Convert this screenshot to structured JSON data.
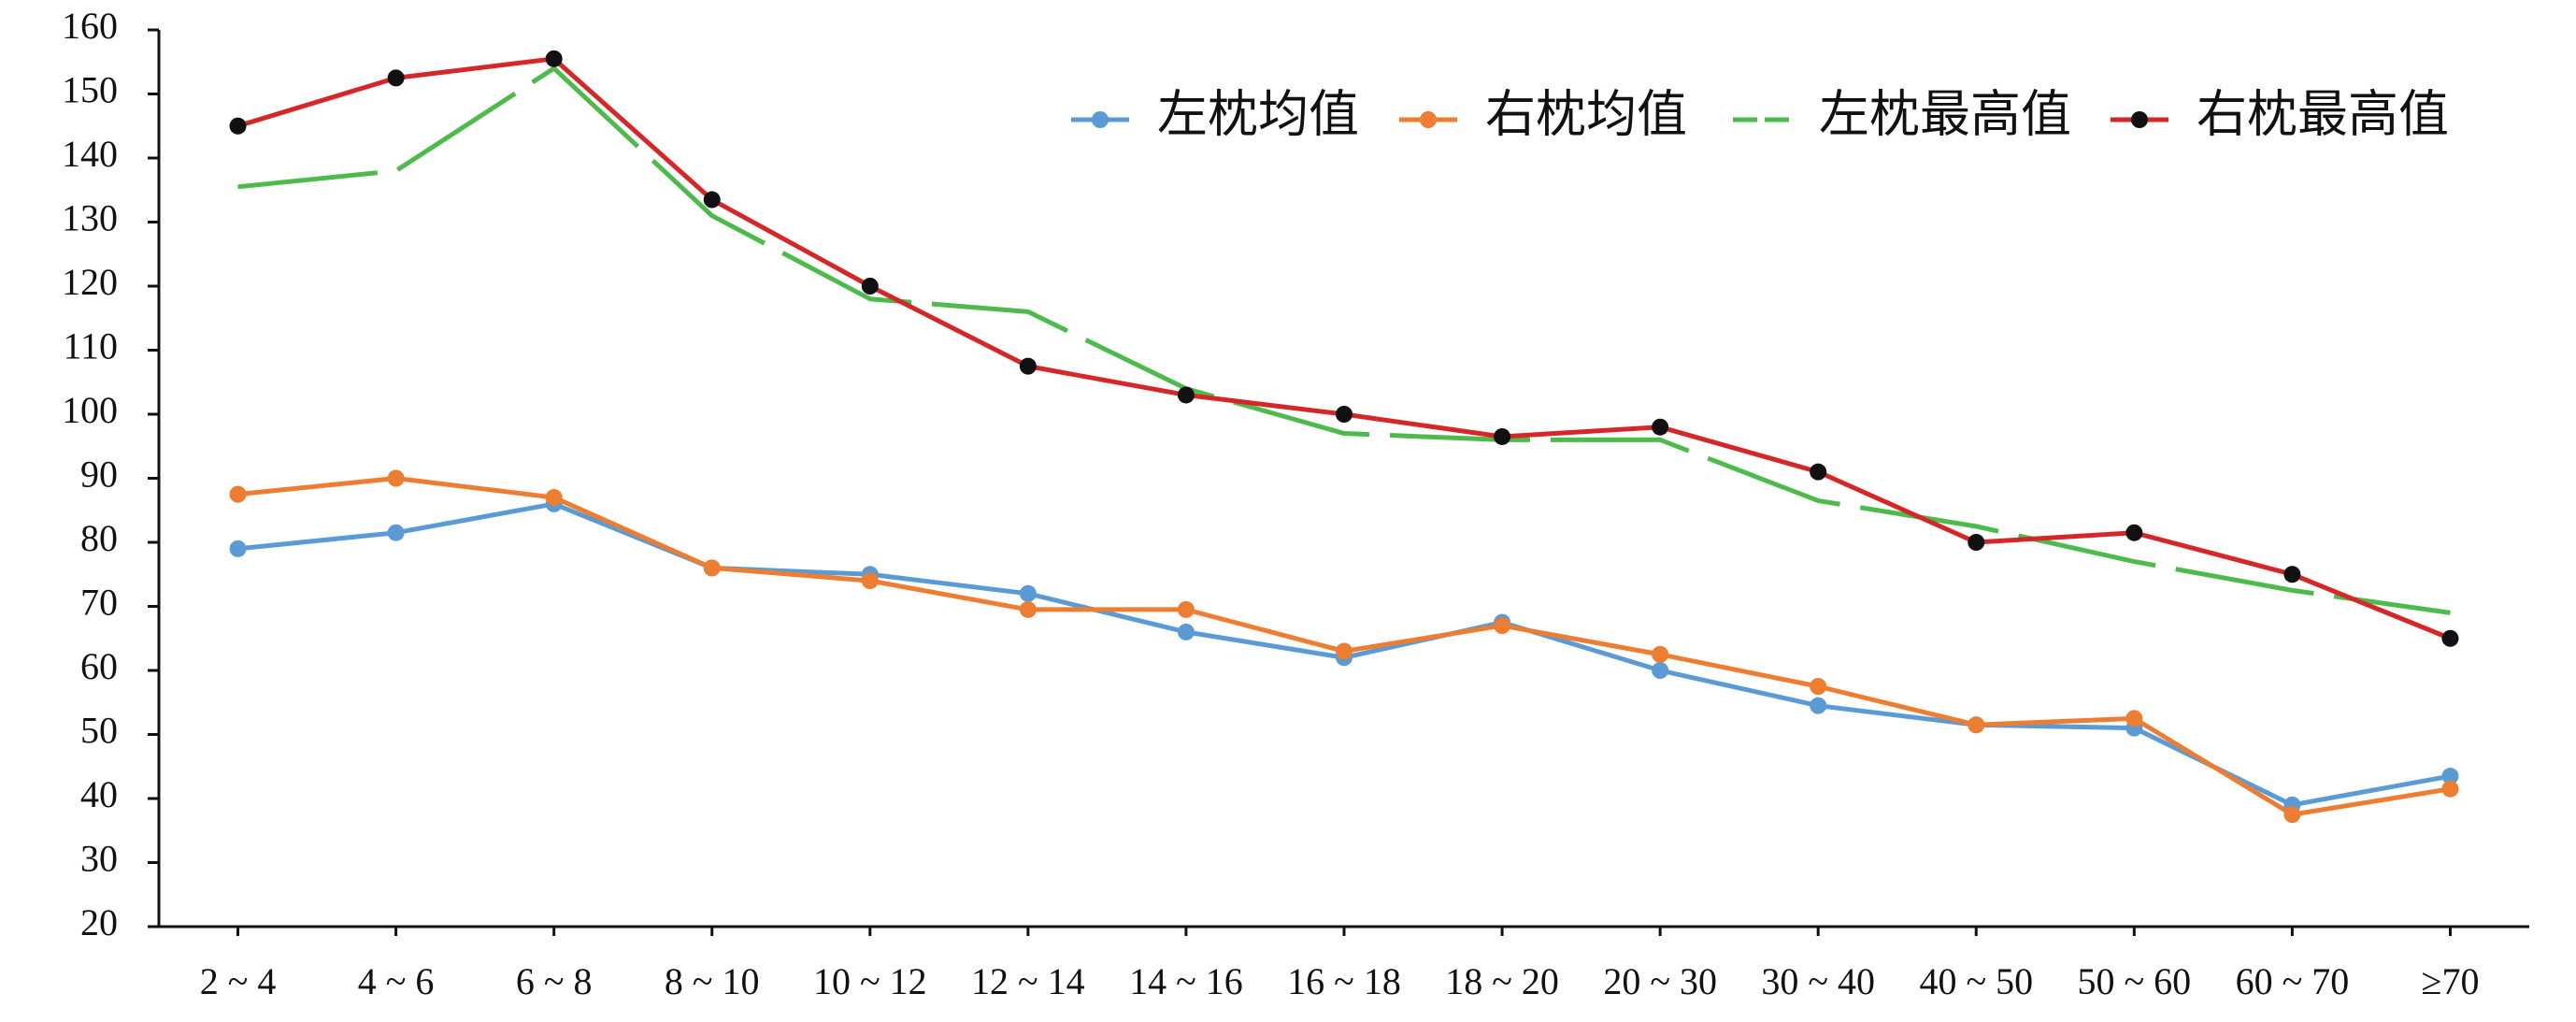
{
  "chart_data": {
    "type": "line",
    "categories": [
      "2 ~ 4",
      "4 ~ 6",
      "6 ~ 8",
      "8 ~ 10",
      "10 ~ 12",
      "12 ~ 14",
      "14 ~ 16",
      "16 ~ 18",
      "18 ~ 20",
      "20 ~ 30",
      "30 ~ 40",
      "40 ~ 50",
      "50 ~ 60",
      "60 ~ 70",
      "≥70"
    ],
    "series": [
      {
        "name": "左枕均值",
        "color": "#5b9bd5",
        "marker_color": "#5b9bd5",
        "dashed": false,
        "values": [
          79,
          81.5,
          86,
          76,
          75,
          72,
          66,
          62,
          67.5,
          60,
          54.5,
          51.5,
          51,
          39,
          43.5
        ]
      },
      {
        "name": "右枕均值",
        "color": "#ed7d31",
        "marker_color": "#ed7d31",
        "dashed": false,
        "values": [
          87.5,
          90,
          87,
          76,
          74,
          69.5,
          69.5,
          63,
          67,
          62.5,
          57.5,
          51.5,
          52.5,
          37.5,
          41.5
        ]
      },
      {
        "name": "左枕最高值",
        "color": "#4cbb4c",
        "marker_color": null,
        "dashed": true,
        "values": [
          135.5,
          138,
          154,
          131,
          118,
          116,
          104,
          97,
          96,
          96,
          86.5,
          82.5,
          77,
          72.5,
          69
        ]
      },
      {
        "name": "右枕最高值",
        "color": "#d62728",
        "marker_color": "#111111",
        "dashed": false,
        "values": [
          145,
          152.5,
          155.5,
          133.5,
          120,
          107.5,
          103,
          100,
          96.5,
          98,
          91,
          80,
          81.5,
          75,
          65
        ]
      }
    ],
    "ylim": [
      20,
      160
    ],
    "yticks": [
      20,
      30,
      40,
      50,
      60,
      70,
      80,
      90,
      100,
      110,
      120,
      130,
      140,
      150,
      160
    ],
    "grid": false,
    "legend": "top-right"
  }
}
